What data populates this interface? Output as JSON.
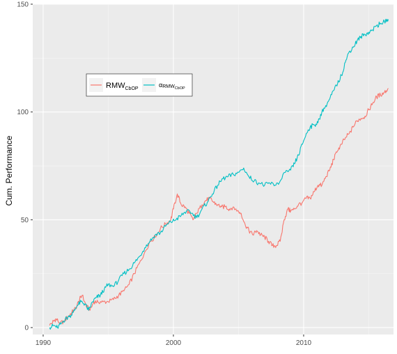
{
  "chart_data": {
    "type": "line",
    "title": "",
    "xlabel": "",
    "ylabel": "Cum. Performance",
    "xlim": [
      1989.2,
      2016.9
    ],
    "ylim": [
      -3.2,
      150
    ],
    "x_ticks": [
      1990,
      2000,
      2010
    ],
    "y_ticks": [
      0,
      50,
      100,
      150
    ],
    "x_tick_labels": [
      "1990",
      "2000",
      "2010"
    ],
    "y_tick_labels": [
      "0",
      "50",
      "100",
      "150"
    ],
    "grid": true,
    "background": "#EBEBEB",
    "legend": {
      "placement": "top-left (inside plot)",
      "entries": [
        {
          "main": "RMW",
          "sub": "CbOP",
          "color": "#F8766D"
        },
        {
          "main": "α",
          "sub": "RMW",
          "subsub": "CbOP",
          "color": "#00BFC4"
        }
      ]
    },
    "series": [
      {
        "color": "#F8766D",
        "x": [
          1990.5,
          1990.8,
          1991.0,
          1991.3,
          1991.6,
          1991.9,
          1992.2,
          1992.5,
          1992.8,
          1993.0,
          1993.3,
          1993.6,
          1993.9,
          1994.2,
          1994.6,
          1995.0,
          1995.4,
          1995.8,
          1996.2,
          1996.6,
          1997.0,
          1997.4,
          1997.8,
          1998.2,
          1998.6,
          1999.0,
          1999.4,
          1999.8,
          2000.0,
          2000.3,
          2000.6,
          2000.9,
          2001.2,
          2001.5,
          2001.8,
          2002.2,
          2002.5,
          2002.8,
          2003.1,
          2003.4,
          2003.7,
          2004.0,
          2004.3,
          2004.6,
          2004.9,
          2005.2,
          2005.5,
          2005.8,
          2006.1,
          2006.4,
          2006.7,
          2007.0,
          2007.3,
          2007.6,
          2007.9,
          2008.2,
          2008.5,
          2008.8,
          2009.0,
          2009.3,
          2009.6,
          2009.9,
          2010.2,
          2010.5,
          2010.8,
          2011.1,
          2011.4,
          2011.7,
          2012.0,
          2012.3,
          2012.6,
          2012.9,
          2013.2,
          2013.5,
          2013.8,
          2014.1,
          2014.4,
          2014.7,
          2015.0,
          2015.3,
          2015.6,
          2015.9,
          2016.2,
          2016.5
        ],
        "values": [
          1,
          3,
          4,
          2,
          3,
          5,
          7,
          9,
          13,
          15,
          10,
          8,
          12,
          12,
          12,
          12,
          13,
          15,
          17,
          20,
          25,
          30,
          35,
          40,
          42,
          46,
          48,
          50,
          55,
          62,
          57,
          56,
          53,
          50,
          53,
          57,
          59,
          60,
          58,
          57,
          56,
          56,
          55,
          56,
          54,
          53,
          48,
          45,
          43,
          45,
          43,
          42,
          40,
          38,
          38,
          40,
          50,
          55,
          54,
          55,
          57,
          58,
          60,
          60,
          63,
          66,
          66,
          70,
          73,
          78,
          82,
          85,
          88,
          90,
          93,
          96,
          97,
          98,
          101,
          104,
          107,
          108,
          109,
          111
        ]
      },
      {
        "color": "#00BFC4",
        "x": [
          1990.5,
          1990.8,
          1991.1,
          1991.4,
          1991.7,
          1992.0,
          1992.3,
          1992.6,
          1992.9,
          1993.2,
          1993.5,
          1993.8,
          1994.1,
          1994.4,
          1994.7,
          1995.0,
          1995.4,
          1995.8,
          1996.2,
          1996.6,
          1997.0,
          1997.4,
          1997.8,
          1998.2,
          1998.6,
          1999.0,
          1999.4,
          1999.8,
          2000.2,
          2000.6,
          2001.0,
          2001.4,
          2001.8,
          2002.2,
          2002.6,
          2003.0,
          2003.4,
          2003.8,
          2004.2,
          2004.6,
          2005.0,
          2005.4,
          2005.8,
          2006.2,
          2006.6,
          2007.0,
          2007.4,
          2007.8,
          2008.2,
          2008.6,
          2009.0,
          2009.3,
          2009.6,
          2009.9,
          2010.2,
          2010.5,
          2010.8,
          2011.1,
          2011.4,
          2011.7,
          2012.0,
          2012.3,
          2012.6,
          2012.9,
          2013.2,
          2013.5,
          2013.8,
          2014.1,
          2014.4,
          2014.7,
          2015.0,
          2015.3,
          2015.6,
          2015.9,
          2016.2,
          2016.5
        ],
        "values": [
          0,
          1,
          0,
          2,
          4,
          5,
          7,
          10,
          12,
          11,
          8,
          12,
          14,
          15,
          18,
          20,
          19,
          22,
          25,
          27,
          30,
          33,
          37,
          40,
          43,
          44,
          47,
          49,
          50,
          52,
          54,
          53,
          51,
          55,
          58,
          62,
          66,
          69,
          70,
          71,
          72,
          74,
          70,
          68,
          67,
          66,
          67,
          66,
          68,
          72,
          73,
          76,
          80,
          85,
          90,
          93,
          94,
          95,
          100,
          103,
          106,
          110,
          113,
          117,
          123,
          128,
          130,
          133,
          135,
          136,
          137,
          138,
          140,
          141,
          142,
          143
        ]
      }
    ]
  }
}
